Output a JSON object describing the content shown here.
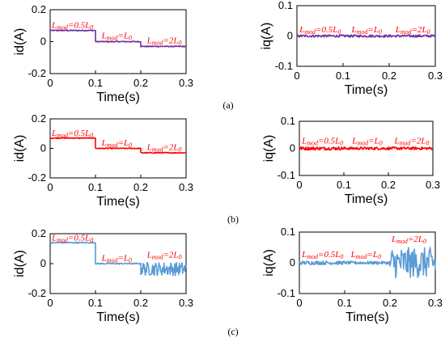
{
  "captions": [
    "(a)",
    "(b)",
    "(c)"
  ],
  "chart_data": [
    {
      "type": "line",
      "id": "a-id",
      "xlabel": "Time(s)",
      "ylabel": "id(A)",
      "xlim": [
        0,
        0.3
      ],
      "ylim": [
        -0.2,
        0.2
      ],
      "xticks": [
        "0",
        "0.1",
        "0.2",
        "0.3"
      ],
      "yticks": [
        "-0.2",
        "0",
        "0.2"
      ],
      "color": "#7030a0",
      "segments": [
        {
          "x0": 0,
          "x1": 0.1,
          "y": 0.07,
          "noise": 0.003
        },
        {
          "x0": 0.1,
          "x1": 0.2,
          "y": 0.0,
          "noise": 0.003
        },
        {
          "x0": 0.2,
          "x1": 0.3,
          "y": -0.03,
          "noise": 0.003
        }
      ],
      "annotations": [
        {
          "x": 0.0,
          "y": 0.085,
          "main": "L",
          "sub": "mod",
          "rest": "=0.5L",
          "sub2": "0"
        },
        {
          "x": 0.11,
          "y": 0.02,
          "main": "L",
          "sub": "mod",
          "rest": "=L",
          "sub2": "0"
        },
        {
          "x": 0.21,
          "y": -0.01,
          "main": "L",
          "sub": "mod",
          "rest": "=2L",
          "sub2": "0"
        }
      ]
    },
    {
      "type": "line",
      "id": "a-iq",
      "xlabel": "Time(s)",
      "ylabel": "iq(A)",
      "xlim": [
        0,
        0.3
      ],
      "ylim": [
        -0.1,
        0.1
      ],
      "xticks": [
        "0",
        "0.1",
        "0.2",
        "0.3"
      ],
      "yticks": [
        "-0.1",
        "0",
        "0.1"
      ],
      "color": "#7030a0",
      "segments": [
        {
          "x0": 0,
          "x1": 0.1,
          "y": 0.0,
          "noise": 0.004
        },
        {
          "x0": 0.1,
          "x1": 0.2,
          "y": 0.0,
          "noise": 0.004
        },
        {
          "x0": 0.2,
          "x1": 0.3,
          "y": 0.0,
          "noise": 0.004
        }
      ],
      "annotations": [
        {
          "x": 0.002,
          "y": 0.012,
          "main": "L",
          "sub": "mod",
          "rest": "=0.5L",
          "sub2": "0"
        },
        {
          "x": 0.115,
          "y": 0.012,
          "main": "L",
          "sub": "mod",
          "rest": "=L",
          "sub2": "0"
        },
        {
          "x": 0.21,
          "y": 0.012,
          "main": "L",
          "sub": "mod",
          "rest": "=2L",
          "sub2": "0"
        }
      ]
    },
    {
      "type": "line",
      "id": "b-id",
      "xlabel": "Time(s)",
      "ylabel": "id(A)",
      "xlim": [
        0,
        0.3
      ],
      "ylim": [
        -0.2,
        0.2
      ],
      "xticks": [
        "0",
        "0.1",
        "0.2",
        "0.3"
      ],
      "yticks": [
        "-0.2",
        "0",
        "0.2"
      ],
      "color": "#ff0000",
      "segments": [
        {
          "x0": 0,
          "x1": 0.1,
          "y": 0.07,
          "noise": 0.003
        },
        {
          "x0": 0.1,
          "x1": 0.2,
          "y": 0.0,
          "noise": 0.003
        },
        {
          "x0": 0.2,
          "x1": 0.3,
          "y": -0.03,
          "noise": 0.003
        }
      ],
      "annotations": [
        {
          "x": 0.0,
          "y": 0.085,
          "main": "L",
          "sub": "mod",
          "rest": "=0.5L",
          "sub2": "0"
        },
        {
          "x": 0.11,
          "y": 0.02,
          "main": "L",
          "sub": "mod",
          "rest": "=L",
          "sub2": "0"
        },
        {
          "x": 0.21,
          "y": -0.01,
          "main": "L",
          "sub": "mod",
          "rest": "=2L",
          "sub2": "0"
        }
      ]
    },
    {
      "type": "line",
      "id": "b-iq",
      "xlabel": "Time(s)",
      "ylabel": "iq(A)",
      "xlim": [
        0,
        0.3
      ],
      "ylim": [
        -0.1,
        0.1
      ],
      "xticks": [
        "0",
        "0.1",
        "0.2",
        "0.3"
      ],
      "yticks": [
        "-0.1",
        "0",
        "0.1"
      ],
      "color": "#ff0000",
      "segments": [
        {
          "x0": 0,
          "x1": 0.1,
          "y": 0.0,
          "noise": 0.006
        },
        {
          "x0": 0.1,
          "x1": 0.2,
          "y": 0.0,
          "noise": 0.005
        },
        {
          "x0": 0.2,
          "x1": 0.3,
          "y": 0.0,
          "noise": 0.005
        }
      ],
      "annotations": [
        {
          "x": 0.002,
          "y": 0.018,
          "main": "L",
          "sub": "mod",
          "rest": "=0.5L",
          "sub2": "0"
        },
        {
          "x": 0.115,
          "y": 0.018,
          "main": "L",
          "sub": "mod",
          "rest": "=L",
          "sub2": "0"
        },
        {
          "x": 0.21,
          "y": 0.018,
          "main": "L",
          "sub": "mod",
          "rest": "=2L",
          "sub2": "0"
        }
      ]
    },
    {
      "type": "line",
      "id": "c-id",
      "xlabel": "Time(s)",
      "ylabel": "id(A)",
      "xlim": [
        0,
        0.3
      ],
      "ylim": [
        -0.2,
        0.2
      ],
      "xticks": [
        "0",
        "0.1",
        "0.2",
        "0.3"
      ],
      "yticks": [
        "-0.2",
        "0",
        "0.2"
      ],
      "color": "#5b9bd5",
      "segments": [
        {
          "x0": 0,
          "x1": 0.1,
          "y": 0.14,
          "noise": 0.004
        },
        {
          "x0": 0.1,
          "x1": 0.2,
          "y": 0.0,
          "noise": 0.004
        },
        {
          "x0": 0.2,
          "x1": 0.3,
          "y": -0.035,
          "noise": 0.045
        }
      ],
      "annotations": [
        {
          "x": 0.0,
          "y": 0.155,
          "main": "L",
          "sub": "mod",
          "rest": "=0.5L",
          "sub2": "0"
        },
        {
          "x": 0.11,
          "y": 0.02,
          "main": "L",
          "sub": "mod",
          "rest": "=L",
          "sub2": "0"
        },
        {
          "x": 0.21,
          "y": 0.04,
          "main": "L",
          "sub": "mod",
          "rest": "=2L",
          "sub2": "0"
        }
      ]
    },
    {
      "type": "line",
      "id": "c-iq",
      "xlabel": "Time(s)",
      "ylabel": "iq(A)",
      "xlim": [
        0,
        0.3
      ],
      "ylim": [
        -0.1,
        0.1
      ],
      "xticks": [
        "0",
        "0.1",
        "0.2",
        "0.3"
      ],
      "yticks": [
        "-0.1",
        "0",
        "0.1"
      ],
      "color": "#5b9bd5",
      "segments": [
        {
          "x0": 0,
          "x1": 0.1,
          "y": 0.0,
          "noise": 0.006
        },
        {
          "x0": 0.1,
          "x1": 0.2,
          "y": 0.0,
          "noise": 0.005
        },
        {
          "x0": 0.2,
          "x1": 0.3,
          "y": 0.0,
          "noise": 0.05
        }
      ],
      "annotations": [
        {
          "x": 0.002,
          "y": 0.018,
          "main": "L",
          "sub": "mod",
          "rest": "=0.5L",
          "sub2": "0"
        },
        {
          "x": 0.11,
          "y": 0.018,
          "main": "L",
          "sub": "mod",
          "rest": "=L",
          "sub2": "0"
        },
        {
          "x": 0.2,
          "y": 0.068,
          "main": "L",
          "sub": "mod",
          "rest": "=2L",
          "sub2": "0"
        }
      ]
    }
  ]
}
